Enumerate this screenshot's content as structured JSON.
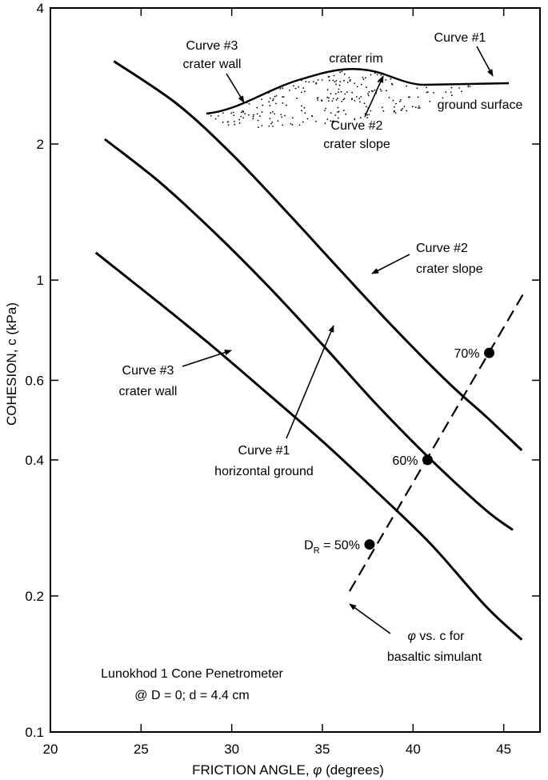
{
  "chart_data": {
    "type": "line",
    "xlabel_prefix": "FRICTION ANGLE, ",
    "xlabel_symbol": "φ",
    "xlabel_suffix": " (degrees)",
    "ylabel": "COHESION, c (kPa)",
    "x_scale": "linear",
    "y_scale": "log",
    "xlim": [
      20,
      47
    ],
    "ylim": [
      0.1,
      4
    ],
    "grid": false,
    "x_ticks": [
      20,
      25,
      30,
      35,
      40,
      45
    ],
    "x_tick_labels": [
      "20",
      "25",
      "30",
      "35",
      "40",
      "45"
    ],
    "y_ticks": [
      0.1,
      0.2,
      0.4,
      0.6,
      1,
      2,
      4
    ],
    "y_tick_labels": [
      "0.1",
      "0.2",
      "0.4",
      "0.6",
      "1",
      "2",
      "4"
    ],
    "series": [
      {
        "name": "Curve #2 crater slope",
        "x": [
          23.5,
          27,
          30,
          33,
          36,
          39,
          42,
          44,
          46
        ],
        "y": [
          3.05,
          2.45,
          1.9,
          1.42,
          1.05,
          0.78,
          0.59,
          0.5,
          0.42
        ]
      },
      {
        "name": "Curve #1 horizontal ground",
        "x": [
          23,
          26,
          29,
          32,
          35,
          38,
          41,
          44,
          45.5
        ],
        "y": [
          2.05,
          1.65,
          1.28,
          0.97,
          0.72,
          0.53,
          0.4,
          0.31,
          0.28
        ]
      },
      {
        "name": "Curve #3 crater wall",
        "x": [
          22.5,
          26,
          29,
          32,
          35,
          38,
          41,
          44,
          46
        ],
        "y": [
          1.15,
          0.89,
          0.71,
          0.56,
          0.44,
          0.34,
          0.26,
          0.19,
          0.16
        ]
      }
    ],
    "dashed_line": {
      "x": [
        36.5,
        46.2
      ],
      "y": [
        0.205,
        0.95
      ]
    },
    "points": [
      {
        "x": 37.6,
        "y": 0.26,
        "label_prefix": "D",
        "label_sub": "R",
        "label_suffix": " = 50%"
      },
      {
        "x": 40.8,
        "y": 0.4,
        "label": "60%"
      },
      {
        "x": 44.2,
        "y": 0.69,
        "label": "70%"
      }
    ],
    "annotations": {
      "curve2": [
        "Curve #2",
        "crater slope"
      ],
      "curve1": [
        "Curve #1",
        "horizontal ground"
      ],
      "curve3": [
        "Curve #3",
        "crater wall"
      ],
      "simulant_line1_suffix": " vs. c for",
      "simulant_symbol": "φ",
      "simulant_line2": "basaltic simulant",
      "note_line1": "Lunokhod 1 Cone Penetrometer",
      "note_line2": "@ D = 0;  d = 4.4 cm"
    },
    "inset": {
      "curve3": [
        "Curve #3",
        "crater wall"
      ],
      "rim": "crater rim",
      "curve1": "Curve #1",
      "ground": "ground surface",
      "curve2": [
        "Curve #2",
        "crater slope"
      ]
    }
  }
}
